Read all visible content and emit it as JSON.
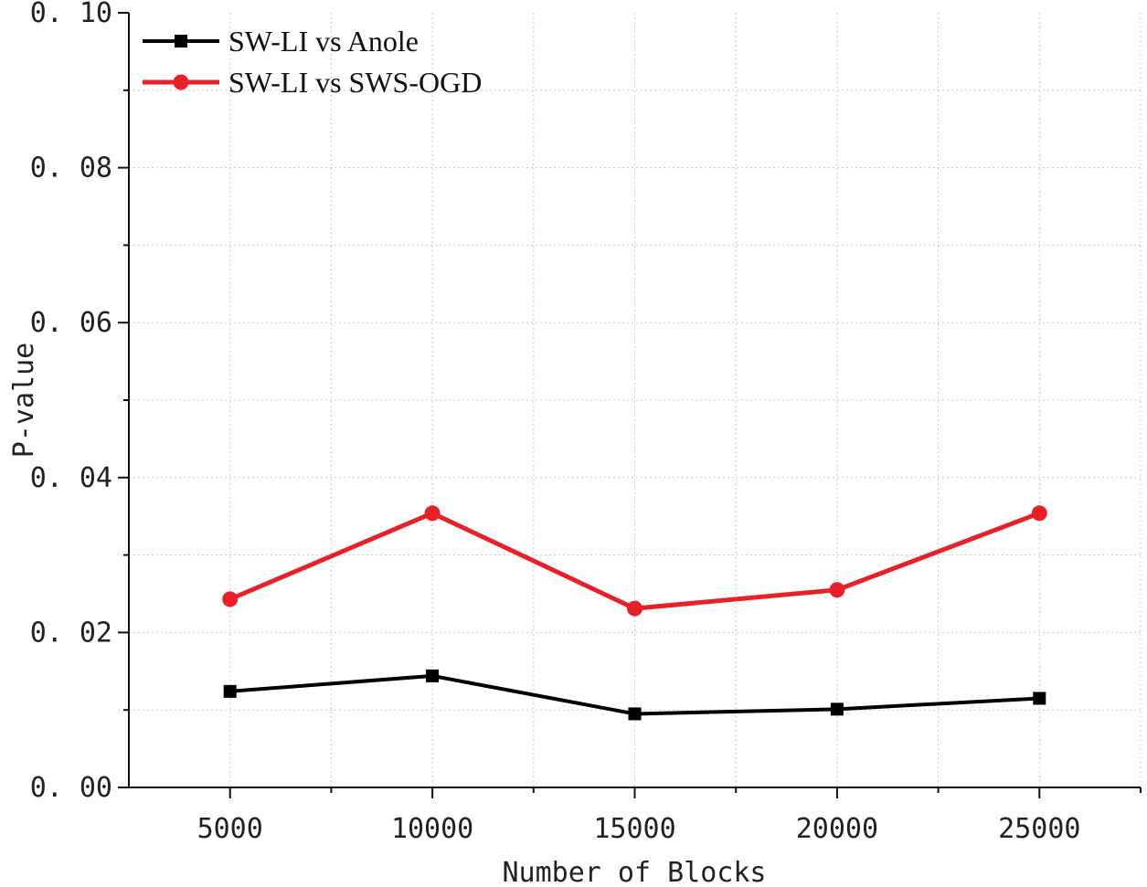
{
  "chart_data": {
    "type": "line",
    "title": "",
    "xlabel": "Number of Blocks",
    "ylabel": "P-value",
    "x": [
      5000,
      10000,
      15000,
      20000,
      25000
    ],
    "xlim": [
      2500,
      27500
    ],
    "ylim": [
      0,
      0.1
    ],
    "xticks": [
      5000,
      10000,
      15000,
      20000,
      25000
    ],
    "xtick_labels": [
      "5000",
      "10000",
      "15000",
      "20000",
      "25000"
    ],
    "yticks": [
      0,
      0.02,
      0.04,
      0.06,
      0.08,
      0.1
    ],
    "ytick_labels": [
      "0. 00",
      "0. 02",
      "0. 04",
      "0. 06",
      "0. 08",
      "0. 10"
    ],
    "grid": true,
    "legend_position": "top-left",
    "series": [
      {
        "name": "SW-LI vs Anole",
        "color": "#000000",
        "marker": "square",
        "values": [
          0.0124,
          0.0144,
          0.0095,
          0.0101,
          0.0115
        ]
      },
      {
        "name": "SW-LI vs SWS-OGD",
        "color": "#e8202a",
        "marker": "circle",
        "values": [
          0.0243,
          0.0354,
          0.0231,
          0.0255,
          0.0354
        ]
      }
    ]
  }
}
